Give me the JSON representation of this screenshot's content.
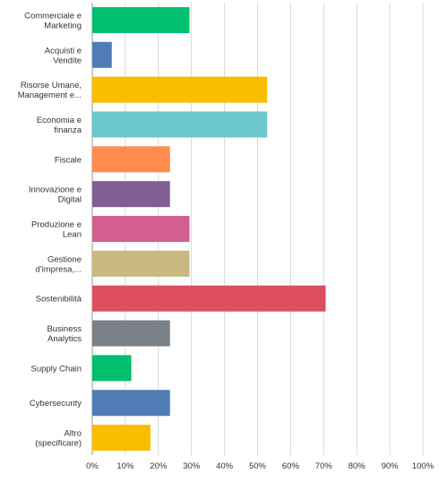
{
  "chart_data": {
    "type": "bar",
    "orientation": "horizontal",
    "title": "",
    "xlabel": "",
    "ylabel": "",
    "xlim": [
      0,
      100
    ],
    "grid": true,
    "legend": "none",
    "categories": [
      [
        "Commerciale e",
        "Marketing"
      ],
      [
        "Acquisti e",
        "Vendite"
      ],
      [
        "Risorse Umane,",
        "Management e..."
      ],
      [
        "Economia e",
        "finanza"
      ],
      [
        "Fiscale"
      ],
      [
        "Innovazione e",
        "Digital"
      ],
      [
        "Produzione e",
        "Lean"
      ],
      [
        "Gestione",
        "d'impresa,..."
      ],
      [
        "Sostenibilità"
      ],
      [
        "Business",
        "Analytics"
      ],
      [
        "Supply Chain"
      ],
      [
        "Cybersecurity"
      ],
      [
        "Altro",
        "(specificare)"
      ]
    ],
    "values": [
      29.4,
      5.9,
      52.9,
      52.9,
      23.5,
      23.5,
      29.4,
      29.4,
      70.6,
      23.5,
      11.8,
      23.5,
      17.6
    ],
    "colors": [
      "#00bf6f",
      "#507cb6",
      "#f9be00",
      "#6bc8cd",
      "#ff8b4f",
      "#7f5f96",
      "#d25f90",
      "#c9b87f",
      "#dd4f5e",
      "#7a8087",
      "#00bf6f",
      "#507cb6",
      "#f9be00"
    ],
    "tick_labels": [
      "0%",
      "10%",
      "20%",
      "30%",
      "40%",
      "50%",
      "60%",
      "70%",
      "80%",
      "90%",
      "100%"
    ],
    "tick_values": [
      0,
      10,
      20,
      30,
      40,
      50,
      60,
      70,
      80,
      90,
      100
    ]
  }
}
